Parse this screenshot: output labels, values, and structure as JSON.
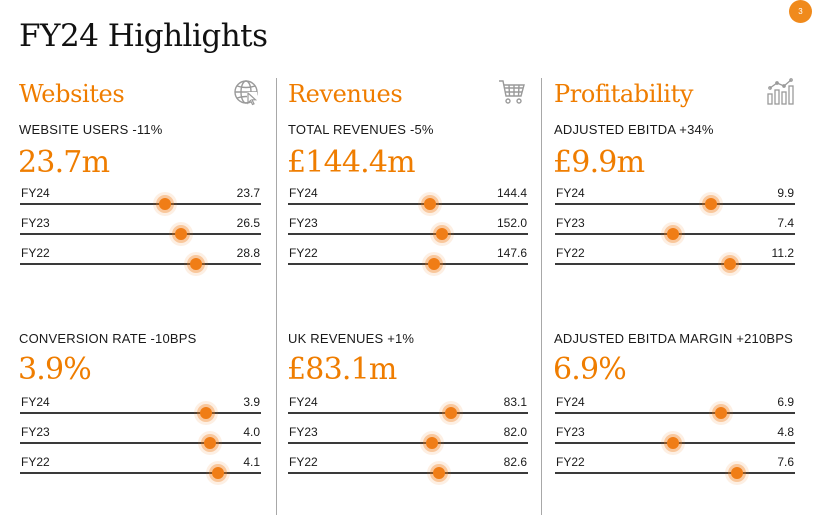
{
  "page_number": "3",
  "title": "FY24 Highlights",
  "accent_color": "#ef7d00",
  "sections": [
    {
      "title": "Websites",
      "icon": "globe-icon",
      "kpis": [
        {
          "label": "WEBSITE USERS -11%",
          "value": "23.7m",
          "rows": [
            {
              "label": "FY24",
              "value": "23.7",
              "pos": 0.6
            },
            {
              "label": "FY23",
              "value": "26.5",
              "pos": 0.67
            },
            {
              "label": "FY22",
              "value": "28.8",
              "pos": 0.73
            }
          ]
        },
        {
          "label": "CONVERSION RATE -10BPS",
          "value": "3.9%",
          "rows": [
            {
              "label": "FY24",
              "value": "3.9",
              "pos": 0.77
            },
            {
              "label": "FY23",
              "value": "4.0",
              "pos": 0.79
            },
            {
              "label": "FY22",
              "value": "4.1",
              "pos": 0.82
            }
          ]
        }
      ]
    },
    {
      "title": "Revenues",
      "icon": "shopping-cart-icon",
      "kpis": [
        {
          "label": "TOTAL REVENUES -5%",
          "value": "£144.4m",
          "rows": [
            {
              "label": "FY24",
              "value": "144.4",
              "pos": 0.59
            },
            {
              "label": "FY23",
              "value": "152.0",
              "pos": 0.64
            },
            {
              "label": "FY22",
              "value": "147.6",
              "pos": 0.61
            }
          ]
        },
        {
          "label": "UK REVENUES +1%",
          "value": "£83.1m",
          "rows": [
            {
              "label": "FY24",
              "value": "83.1",
              "pos": 0.68
            },
            {
              "label": "FY23",
              "value": "82.0",
              "pos": 0.6
            },
            {
              "label": "FY22",
              "value": "82.6",
              "pos": 0.63
            }
          ]
        }
      ]
    },
    {
      "title": "Profitability",
      "icon": "bar-chart-icon",
      "kpis": [
        {
          "label": "ADJUSTED EBITDA +34%",
          "value": "£9.9m",
          "rows": [
            {
              "label": "FY24",
              "value": "9.9",
              "pos": 0.65
            },
            {
              "label": "FY23",
              "value": "7.4",
              "pos": 0.49
            },
            {
              "label": "FY22",
              "value": "11.2",
              "pos": 0.73
            }
          ]
        },
        {
          "label": "ADJUSTED EBITDA MARGIN +210BPS",
          "value": "6.9%",
          "rows": [
            {
              "label": "FY24",
              "value": "6.9",
              "pos": 0.69
            },
            {
              "label": "FY23",
              "value": "4.8",
              "pos": 0.49
            },
            {
              "label": "FY22",
              "value": "7.6",
              "pos": 0.76
            }
          ]
        }
      ]
    }
  ]
}
